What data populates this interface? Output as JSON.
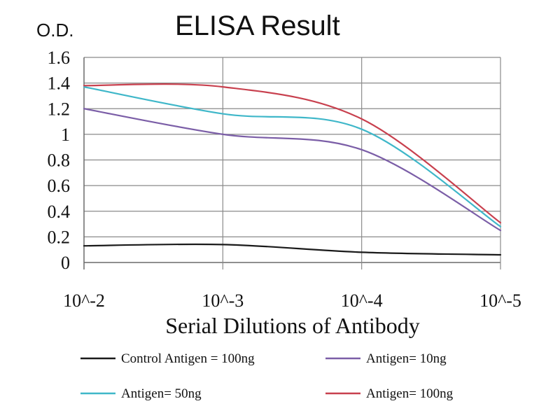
{
  "chart_data": {
    "type": "line",
    "title": "ELISA Result",
    "ylabel": "O.D.",
    "xlabel": "Serial Dilutions of Antibody",
    "categories": [
      "10^-2",
      "10^-3",
      "10^-4",
      "10^-5"
    ],
    "ylim": [
      0,
      1.6
    ],
    "yticks": [
      "0",
      "0.2",
      "0.4",
      "0.6",
      "0.8",
      "1",
      "1.2",
      "1.4",
      "1.6"
    ],
    "grid": true,
    "legend_position": "bottom",
    "series": [
      {
        "name": "Control Antigen = 100ng",
        "color": "#1a1a1a",
        "values": [
          0.13,
          0.14,
          0.08,
          0.06
        ]
      },
      {
        "name": "Antigen= 10ng",
        "color": "#7b5ea7",
        "values": [
          1.2,
          1.0,
          0.88,
          0.25
        ]
      },
      {
        "name": "Antigen= 50ng",
        "color": "#3fb7c9",
        "values": [
          1.37,
          1.16,
          1.04,
          0.28
        ]
      },
      {
        "name": "Antigen= 100ng",
        "color": "#c8404e",
        "values": [
          1.38,
          1.37,
          1.12,
          0.31
        ]
      }
    ]
  }
}
